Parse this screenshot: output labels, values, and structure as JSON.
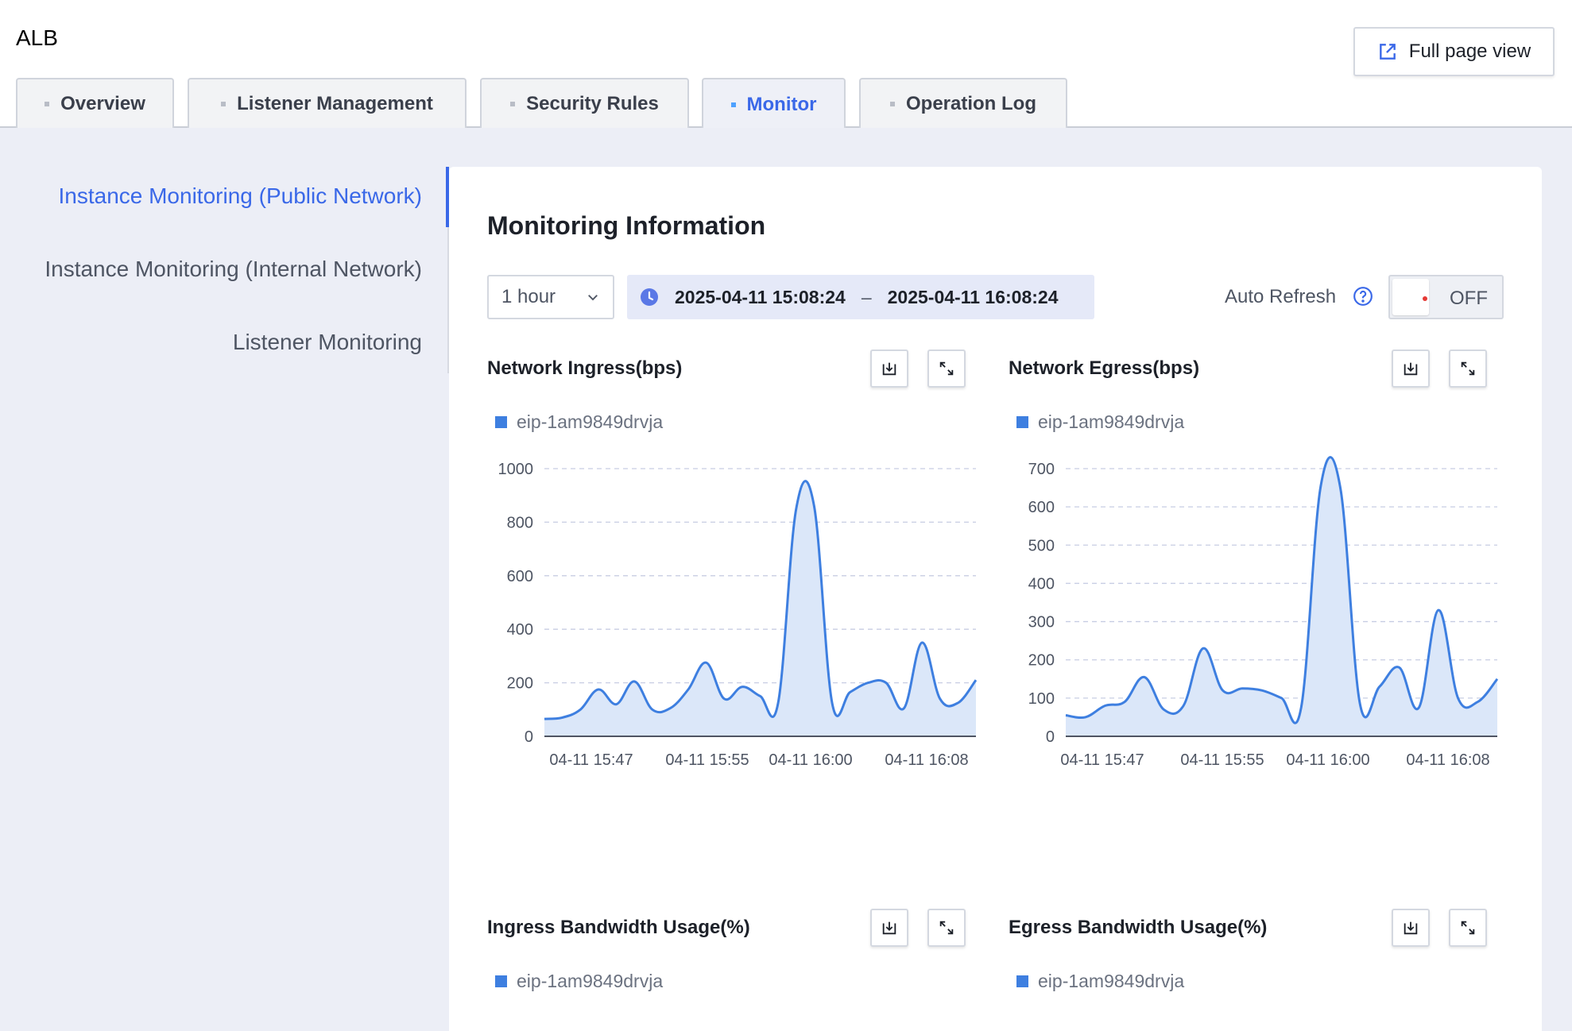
{
  "header": {
    "title": "ALB",
    "full_page_label": "Full page view"
  },
  "tabs": [
    {
      "label": "Overview",
      "active": false
    },
    {
      "label": "Listener Management",
      "active": false
    },
    {
      "label": "Security Rules",
      "active": false
    },
    {
      "label": "Monitor",
      "active": true
    },
    {
      "label": "Operation Log",
      "active": false
    }
  ],
  "side_nav": {
    "items": [
      {
        "label": "Instance Monitoring (Public Network)",
        "active": true
      },
      {
        "label": "Instance Monitoring (Internal Network)",
        "active": false
      },
      {
        "label": "Listener Monitoring",
        "active": false
      }
    ]
  },
  "panel": {
    "title": "Monitoring Information",
    "range_select": "1 hour",
    "time_start": "2025-04-11 15:08:24",
    "time_separator": "–",
    "time_end": "2025-04-11 16:08:24",
    "auto_refresh_label": "Auto Refresh",
    "auto_refresh_state": "OFF"
  },
  "colors": {
    "accent": "#3a68e8",
    "series": "#3e7fe0",
    "area": "#dbe7f9"
  },
  "icons": {
    "full_page": "external-link-icon",
    "clock": "clock-icon",
    "help": "question-circle-icon",
    "download": "download-icon",
    "expand": "expand-icon"
  },
  "chart_data": [
    {
      "type": "area",
      "title": "Network Ingress(bps)",
      "series": [
        {
          "name": "eip-1am9849drvja",
          "values": [
            65,
            70,
            100,
            175,
            120,
            205,
            100,
            105,
            175,
            275,
            140,
            185,
            150,
            125,
            850,
            860,
            125,
            165,
            200,
            200,
            105,
            350,
            140,
            125,
            210
          ]
        }
      ],
      "x_tick_labels": [
        "04-11 15:47",
        "04-11 15:55",
        "04-11 16:00",
        "04-11 16:08"
      ],
      "ylim": [
        0,
        1000
      ],
      "y_ticks": [
        0,
        200,
        400,
        600,
        800,
        1000
      ],
      "grid": true
    },
    {
      "type": "area",
      "title": "Network Egress(bps)",
      "series": [
        {
          "name": "eip-1am9849drvja",
          "values": [
            55,
            50,
            80,
            90,
            155,
            70,
            80,
            230,
            120,
            125,
            120,
            100,
            75,
            655,
            650,
            85,
            130,
            180,
            75,
            330,
            100,
            90,
            150
          ]
        }
      ],
      "x_tick_labels": [
        "04-11 15:47",
        "04-11 15:55",
        "04-11 16:00",
        "04-11 16:08"
      ],
      "ylim": [
        0,
        700
      ],
      "y_ticks": [
        0,
        100,
        200,
        300,
        400,
        500,
        600,
        700
      ],
      "grid": true
    },
    {
      "type": "area",
      "title": "Ingress Bandwidth Usage(%)",
      "series": [
        {
          "name": "eip-1am9849drvja",
          "values": []
        }
      ]
    },
    {
      "type": "area",
      "title": "Egress Bandwidth Usage(%)",
      "series": [
        {
          "name": "eip-1am9849drvja",
          "values": []
        }
      ]
    }
  ]
}
